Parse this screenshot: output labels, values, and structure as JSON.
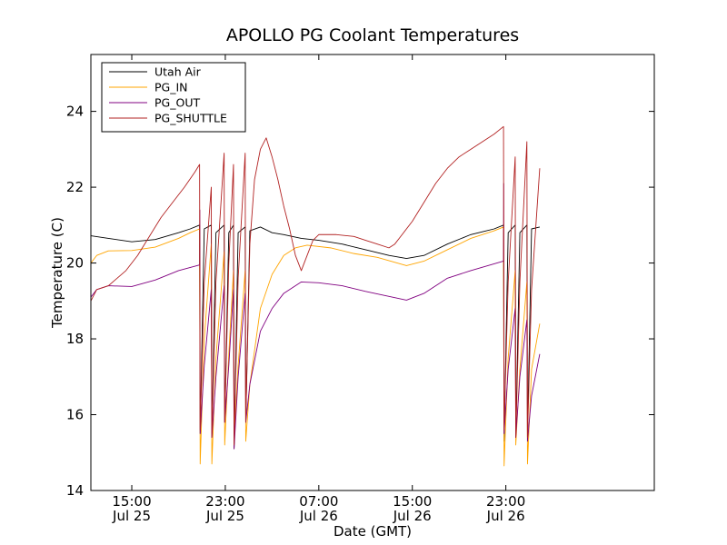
{
  "chart_data": {
    "type": "line",
    "title": "APOLLO PG Coolant Temperatures",
    "xlabel": "Date (GMT)",
    "ylabel": "Temperature (C)",
    "xlim": [
      11.5,
      59.7
    ],
    "ylim": [
      14,
      25.5
    ],
    "x_unit": "hours since Jul 25 00:00 GMT",
    "xticks": [
      {
        "x": 15,
        "label1": "15:00",
        "label2": "Jul 25"
      },
      {
        "x": 23,
        "label1": "23:00",
        "label2": "Jul 25"
      },
      {
        "x": 31,
        "label1": "07:00",
        "label2": "Jul 26"
      },
      {
        "x": 39,
        "label1": "15:00",
        "label2": "Jul 26"
      },
      {
        "x": 47,
        "label1": "23:00",
        "label2": "Jul 26"
      }
    ],
    "yticks": [
      14,
      16,
      18,
      20,
      22,
      24
    ],
    "legend_position": "upper-left",
    "series": [
      {
        "name": "Utah Air",
        "color": "#000000",
        "points": [
          [
            11.5,
            20.72
          ],
          [
            13.0,
            20.65
          ],
          [
            15.0,
            20.56
          ],
          [
            17.0,
            20.62
          ],
          [
            19.0,
            20.8
          ],
          [
            20.0,
            20.9
          ],
          [
            20.8,
            21.0
          ],
          [
            20.85,
            15.5
          ],
          [
            21.2,
            20.9
          ],
          [
            21.8,
            21.0
          ],
          [
            21.85,
            15.4
          ],
          [
            22.2,
            20.8
          ],
          [
            22.9,
            21.0
          ],
          [
            22.95,
            15.8
          ],
          [
            23.3,
            20.8
          ],
          [
            23.7,
            21.0
          ],
          [
            23.75,
            15.1
          ],
          [
            24.1,
            20.8
          ],
          [
            24.7,
            20.95
          ],
          [
            24.75,
            15.8
          ],
          [
            25.1,
            20.85
          ],
          [
            26.0,
            20.95
          ],
          [
            27.0,
            20.8
          ],
          [
            28.0,
            20.75
          ],
          [
            29.5,
            20.65
          ],
          [
            31.0,
            20.6
          ],
          [
            33.0,
            20.5
          ],
          [
            35.0,
            20.35
          ],
          [
            37.0,
            20.2
          ],
          [
            38.5,
            20.12
          ],
          [
            40.0,
            20.2
          ],
          [
            42.0,
            20.5
          ],
          [
            44.0,
            20.75
          ],
          [
            46.0,
            20.9
          ],
          [
            46.8,
            21.0
          ],
          [
            46.85,
            15.3
          ],
          [
            47.2,
            20.8
          ],
          [
            47.8,
            21.0
          ],
          [
            47.85,
            15.4
          ],
          [
            48.2,
            20.8
          ],
          [
            48.8,
            21.0
          ],
          [
            48.85,
            15.4
          ],
          [
            49.2,
            20.9
          ],
          [
            49.9,
            20.95
          ]
        ]
      },
      {
        "name": "PG_IN",
        "color": "#ffa500",
        "points": [
          [
            11.5,
            20.0
          ],
          [
            12.0,
            20.2
          ],
          [
            13.0,
            20.32
          ],
          [
            15.0,
            20.33
          ],
          [
            17.0,
            20.42
          ],
          [
            19.0,
            20.65
          ],
          [
            20.0,
            20.8
          ],
          [
            20.8,
            20.9
          ],
          [
            20.85,
            14.7
          ],
          [
            21.2,
            18.0
          ],
          [
            21.8,
            20.5
          ],
          [
            21.85,
            14.7
          ],
          [
            22.2,
            17.5
          ],
          [
            22.9,
            20.3
          ],
          [
            22.95,
            15.2
          ],
          [
            23.3,
            17.6
          ],
          [
            23.7,
            19.8
          ],
          [
            23.75,
            15.3
          ],
          [
            24.1,
            17.3
          ],
          [
            24.7,
            19.8
          ],
          [
            24.75,
            15.3
          ],
          [
            25.1,
            16.8
          ],
          [
            26.0,
            18.8
          ],
          [
            27.0,
            19.7
          ],
          [
            28.0,
            20.2
          ],
          [
            29.0,
            20.4
          ],
          [
            30.0,
            20.47
          ],
          [
            32.0,
            20.4
          ],
          [
            34.0,
            20.25
          ],
          [
            36.0,
            20.15
          ],
          [
            38.5,
            19.93
          ],
          [
            40.0,
            20.05
          ],
          [
            42.0,
            20.35
          ],
          [
            44.0,
            20.65
          ],
          [
            46.0,
            20.85
          ],
          [
            46.8,
            20.95
          ],
          [
            46.85,
            14.65
          ],
          [
            47.2,
            17.5
          ],
          [
            47.8,
            19.8
          ],
          [
            47.85,
            15.2
          ],
          [
            48.2,
            17.2
          ],
          [
            48.8,
            19.5
          ],
          [
            48.85,
            14.7
          ],
          [
            49.2,
            17.2
          ],
          [
            49.9,
            18.4
          ]
        ]
      },
      {
        "name": "PG_OUT",
        "color": "#800080",
        "points": [
          [
            11.5,
            19.1
          ],
          [
            12.0,
            19.3
          ],
          [
            13.0,
            19.4
          ],
          [
            15.0,
            19.38
          ],
          [
            17.0,
            19.55
          ],
          [
            19.0,
            19.8
          ],
          [
            20.8,
            19.95
          ],
          [
            20.82,
            21.4
          ],
          [
            20.85,
            15.5
          ],
          [
            21.2,
            17.3
          ],
          [
            21.8,
            19.3
          ],
          [
            21.85,
            15.4
          ],
          [
            22.2,
            17.0
          ],
          [
            22.9,
            19.4
          ],
          [
            22.95,
            15.8
          ],
          [
            23.3,
            17.3
          ],
          [
            23.7,
            19.3
          ],
          [
            23.75,
            15.1
          ],
          [
            24.1,
            17.0
          ],
          [
            24.7,
            19.2
          ],
          [
            24.75,
            15.8
          ],
          [
            25.1,
            16.8
          ],
          [
            26.0,
            18.2
          ],
          [
            27.0,
            18.8
          ],
          [
            28.0,
            19.2
          ],
          [
            29.5,
            19.5
          ],
          [
            31.0,
            19.48
          ],
          [
            33.0,
            19.4
          ],
          [
            35.0,
            19.25
          ],
          [
            37.0,
            19.12
          ],
          [
            38.5,
            19.02
          ],
          [
            40.0,
            19.2
          ],
          [
            42.0,
            19.6
          ],
          [
            44.0,
            19.8
          ],
          [
            46.0,
            19.98
          ],
          [
            46.8,
            20.05
          ],
          [
            46.82,
            22.1
          ],
          [
            46.85,
            15.5
          ],
          [
            47.2,
            17.2
          ],
          [
            47.8,
            18.8
          ],
          [
            47.85,
            15.4
          ],
          [
            48.2,
            17.0
          ],
          [
            48.8,
            18.5
          ],
          [
            48.85,
            15.3
          ],
          [
            49.2,
            16.5
          ],
          [
            49.9,
            17.6
          ]
        ]
      },
      {
        "name": "PG_SHUTTLE",
        "color": "#b22222",
        "points": [
          [
            11.5,
            19.0
          ],
          [
            12.0,
            19.3
          ],
          [
            13.0,
            19.4
          ],
          [
            14.5,
            19.8
          ],
          [
            15.5,
            20.2
          ],
          [
            16.5,
            20.7
          ],
          [
            17.5,
            21.2
          ],
          [
            18.5,
            21.6
          ],
          [
            19.5,
            22.0
          ],
          [
            20.4,
            22.4
          ],
          [
            20.8,
            22.6
          ],
          [
            20.85,
            15.6
          ],
          [
            21.2,
            19.5
          ],
          [
            21.8,
            22.0
          ],
          [
            21.85,
            15.4
          ],
          [
            22.2,
            19.5
          ],
          [
            22.9,
            22.9
          ],
          [
            22.95,
            15.8
          ],
          [
            23.3,
            20.0
          ],
          [
            23.7,
            22.6
          ],
          [
            23.75,
            15.2
          ],
          [
            24.1,
            19.6
          ],
          [
            24.7,
            22.9
          ],
          [
            24.75,
            15.8
          ],
          [
            25.1,
            20.5
          ],
          [
            25.5,
            22.2
          ],
          [
            26.0,
            23.0
          ],
          [
            26.5,
            23.3
          ],
          [
            27.0,
            22.8
          ],
          [
            27.5,
            22.2
          ],
          [
            28.0,
            21.5
          ],
          [
            28.5,
            20.9
          ],
          [
            29.0,
            20.2
          ],
          [
            29.5,
            19.8
          ],
          [
            30.0,
            20.2
          ],
          [
            30.5,
            20.6
          ],
          [
            31.0,
            20.75
          ],
          [
            32.5,
            20.75
          ],
          [
            34.0,
            20.7
          ],
          [
            35.0,
            20.6
          ],
          [
            36.0,
            20.5
          ],
          [
            37.0,
            20.4
          ],
          [
            37.5,
            20.5
          ],
          [
            38.0,
            20.7
          ],
          [
            39.0,
            21.1
          ],
          [
            40.0,
            21.6
          ],
          [
            41.0,
            22.1
          ],
          [
            42.0,
            22.5
          ],
          [
            43.0,
            22.8
          ],
          [
            44.0,
            23.0
          ],
          [
            45.0,
            23.2
          ],
          [
            46.0,
            23.4
          ],
          [
            46.8,
            23.6
          ],
          [
            46.85,
            15.6
          ],
          [
            47.2,
            19.5
          ],
          [
            47.8,
            22.8
          ],
          [
            47.85,
            15.4
          ],
          [
            48.2,
            19.5
          ],
          [
            48.8,
            23.2
          ],
          [
            48.85,
            15.4
          ],
          [
            49.2,
            19.3
          ],
          [
            49.9,
            22.5
          ]
        ]
      }
    ]
  }
}
